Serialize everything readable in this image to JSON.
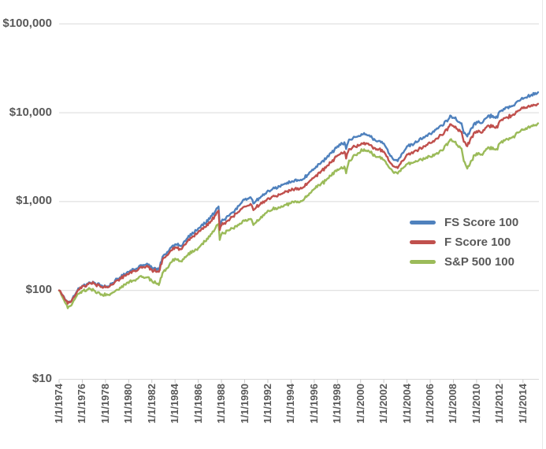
{
  "chart_data": {
    "type": "line",
    "title": "",
    "y_axis": {
      "scale": "log",
      "ylim": [
        10,
        100000
      ],
      "tick_labels": [
        "$10",
        "$100",
        "$1,000",
        "$10,000",
        "$100,000"
      ],
      "tick_values": [
        10,
        100,
        1000,
        10000,
        100000
      ]
    },
    "x_axis": {
      "tick_labels": [
        "1/1/1974",
        "1/1/1976",
        "1/1/1978",
        "1/1/1980",
        "1/1/1982",
        "1/1/1984",
        "1/1/1986",
        "1/1/1988",
        "1/1/1990",
        "1/1/1992",
        "1/1/1994",
        "1/1/1996",
        "1/1/1998",
        "1/1/2000",
        "1/1/2002",
        "1/1/2004",
        "1/1/2006",
        "1/1/2008",
        "1/1/2010",
        "1/1/2012",
        "1/1/2014"
      ],
      "range_years": [
        1974,
        2015.4
      ]
    },
    "grid": "horizontal-decade-gridlines",
    "legend_position": "right-middle",
    "x": [
      1974.0,
      1974.75,
      1975.0,
      1975.5,
      1976.0,
      1976.5,
      1977.0,
      1977.5,
      1978.2,
      1979.0,
      1980.0,
      1980.9,
      1981.5,
      1982.0,
      1982.6,
      1983.0,
      1984.0,
      1984.5,
      1985.0,
      1986.0,
      1987.0,
      1987.75,
      1987.85,
      1988.0,
      1989.0,
      1990.0,
      1990.5,
      1990.75,
      1991.0,
      1992.0,
      1993.0,
      1994.0,
      1995.0,
      1996.0,
      1997.0,
      1998.0,
      1998.6,
      1998.75,
      1999.0,
      2000.0,
      2000.3,
      2001.0,
      2002.0,
      2002.8,
      2003.2,
      2004.0,
      2005.0,
      2006.0,
      2007.0,
      2007.8,
      2008.0,
      2008.7,
      2008.9,
      2009.2,
      2009.5,
      2010.0,
      2010.5,
      2011.0,
      2011.8,
      2012.0,
      2013.0,
      2014.0,
      2015.3
    ],
    "series": [
      {
        "name": "FS Score 100",
        "color": "#4F81BD",
        "values": [
          100,
          72,
          75,
          96,
          113,
          119,
          123,
          116,
          111,
          135,
          160,
          188,
          196,
          180,
          172,
          248,
          330,
          315,
          380,
          500,
          640,
          880,
          540,
          600,
          760,
          1050,
          1120,
          950,
          1020,
          1330,
          1480,
          1650,
          1780,
          2350,
          3000,
          4200,
          4650,
          3900,
          5000,
          5500,
          5900,
          5200,
          4500,
          3000,
          2850,
          4200,
          4800,
          5800,
          7200,
          9200,
          8800,
          7600,
          5900,
          5400,
          6600,
          7900,
          7700,
          9300,
          8800,
          10400,
          11900,
          14300,
          17000
        ]
      },
      {
        "name": "F Score 100",
        "color": "#C0504D",
        "values": [
          100,
          71,
          74,
          94,
          111,
          117,
          120,
          113,
          108,
          130,
          152,
          178,
          186,
          170,
          162,
          232,
          305,
          290,
          348,
          455,
          575,
          790,
          480,
          540,
          680,
          880,
          940,
          800,
          860,
          1090,
          1200,
          1330,
          1430,
          1880,
          2400,
          3300,
          3650,
          3050,
          3900,
          4350,
          4600,
          4150,
          3650,
          2500,
          2380,
          3400,
          3850,
          4550,
          5600,
          7400,
          7100,
          6100,
          4700,
          4200,
          5200,
          6200,
          6000,
          7200,
          6800,
          8100,
          9300,
          11200,
          12600
        ]
      },
      {
        "name": "S&P 500 100",
        "color": "#9BBB59",
        "values": [
          100,
          63,
          67,
          86,
          99,
          103,
          100,
          93,
          89,
          102,
          121,
          142,
          140,
          128,
          115,
          163,
          228,
          213,
          245,
          300,
          405,
          560,
          370,
          430,
          500,
          605,
          640,
          545,
          585,
          790,
          855,
          960,
          1030,
          1390,
          1720,
          2300,
          2480,
          2080,
          2900,
          3650,
          3880,
          3450,
          2950,
          2150,
          2070,
          2650,
          2900,
          3200,
          3750,
          5050,
          4750,
          3950,
          2850,
          2350,
          2850,
          3500,
          3350,
          4100,
          3850,
          4550,
          5250,
          6400,
          7600
        ]
      }
    ]
  },
  "style": {
    "gridline_color": "#D9D9D9",
    "tick_color": "#C9C9C9",
    "axis_text_color": "#595959",
    "background": "#ffffff",
    "right_edge_line_color": "#E8E8E8"
  }
}
